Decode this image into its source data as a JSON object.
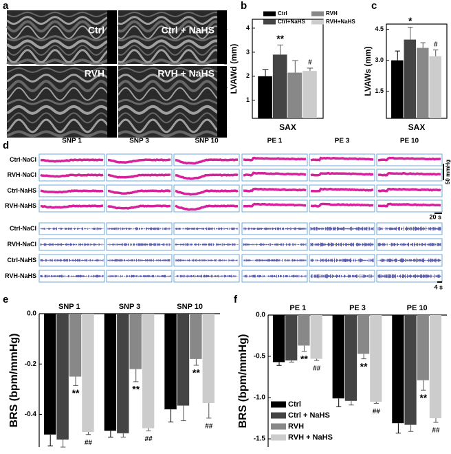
{
  "figure": {
    "panel_labels": [
      "a",
      "b",
      "c",
      "d",
      "e",
      "f"
    ],
    "echo_labels": [
      "Ctrl",
      "Ctrl + NaHS",
      "RVH",
      "RVH + NaHS"
    ],
    "trace_columns": [
      "SNP 1",
      "SNP 3",
      "SNP 10",
      "PE 1",
      "PE 3",
      "PE 10"
    ],
    "pressure_rows": [
      "Ctrl-NaCl",
      "RVH-NaCl",
      "Ctrl-NaHS",
      "RVH-NaHS"
    ],
    "nerve_rows": [
      "Ctrl-NaCl",
      "RVH-NaCl",
      "Ctrl-NaHS",
      "RVH-NaHS"
    ],
    "scale_labels": [
      "50 mmHg",
      "20 s",
      "4 s"
    ]
  },
  "chart_data": [
    {
      "type": "bar",
      "ylabel": "LVAWd (mm)",
      "categories": [
        "SAX"
      ],
      "category_side": "bottom",
      "frame": true,
      "legend": "top",
      "ylim": [
        0.25,
        4.37
      ],
      "yticks": [
        1,
        2,
        3,
        4
      ],
      "series": [
        {
          "name": "Ctrl",
          "color": "#000000",
          "values": [
            2.0
          ],
          "errors": [
            0.27
          ],
          "annotations": [
            null
          ]
        },
        {
          "name": "Ctrl+NaHS",
          "color": "#444444",
          "values": [
            2.9
          ],
          "errors": [
            0.4
          ],
          "annotations": [
            "**"
          ]
        },
        {
          "name": "RVH",
          "color": "#888888",
          "values": [
            2.15
          ],
          "errors": [
            0.5
          ],
          "annotations": [
            null
          ]
        },
        {
          "name": "RVH+NaHS",
          "color": "#cccccc",
          "values": [
            2.22
          ],
          "errors": [
            0.12
          ],
          "annotations": [
            "#"
          ]
        }
      ]
    },
    {
      "type": "bar",
      "ylabel": "LVAWs (mm)",
      "categories": [
        "SAX"
      ],
      "category_side": "bottom",
      "frame": true,
      "legend": false,
      "ylim": [
        0.2,
        4.75
      ],
      "yticks": [
        1.5,
        {
          "value": 3,
          "label": "3.0"
        },
        4.5
      ],
      "series": [
        {
          "color": "#000000",
          "values": [
            3.0
          ],
          "errors": [
            0.45
          ],
          "annotations": [
            null
          ]
        },
        {
          "color": "#444444",
          "values": [
            4.0
          ],
          "errors": [
            0.6
          ],
          "annotations": [
            "*"
          ]
        },
        {
          "color": "#888888",
          "values": [
            3.6
          ],
          "errors": [
            0.25
          ],
          "annotations": [
            null
          ]
        },
        {
          "color": "#cccccc",
          "values": [
            3.2
          ],
          "errors": [
            0.3
          ],
          "annotations": [
            "#"
          ]
        }
      ]
    },
    {
      "type": "bar",
      "ylabel": "BRS (bpm/mmHg)",
      "categories": [
        "SNP 1",
        "SNP 3",
        "SNP 10"
      ],
      "category_side": "top",
      "frame": false,
      "legend": false,
      "ylim": [
        -0.53,
        0
      ],
      "yticks": [
        {
          "value": 0,
          "label": "0.0"
        },
        -0.2,
        -0.4
      ],
      "series": [
        {
          "color": "#000000",
          "values": [
            -0.48,
            -0.465,
            -0.38
          ],
          "errors": [
            0.045,
            0.025,
            0.05
          ],
          "annotations": [
            null,
            null,
            null
          ]
        },
        {
          "color": "#444444",
          "values": [
            -0.5,
            -0.475,
            -0.365
          ],
          "errors": [
            0.03,
            0.015,
            0.06
          ],
          "annotations": [
            null,
            null,
            null
          ]
        },
        {
          "color": "#888888",
          "values": [
            -0.25,
            -0.22,
            -0.18
          ],
          "errors": [
            0.035,
            0.05,
            0.025
          ],
          "annotations": [
            "**",
            "**",
            "**"
          ]
        },
        {
          "color": "#cccccc",
          "values": [
            -0.47,
            -0.455,
            -0.355
          ],
          "errors": [
            0.01,
            0.01,
            0.06
          ],
          "annotations": [
            "##",
            "##",
            "##"
          ]
        }
      ]
    },
    {
      "type": "bar",
      "ylabel": "BRS (bpm/mmHg)",
      "categories": [
        "PE 1",
        "PE 3",
        "PE 10"
      ],
      "category_side": "top",
      "frame": false,
      "legend": "lower left",
      "ylim": [
        -1.6,
        0
      ],
      "yticks": [
        {
          "value": 0,
          "label": "0.0"
        },
        -0.5,
        {
          "value": -1,
          "label": "-1.0"
        },
        -1.5
      ],
      "series": [
        {
          "name": "Ctrl",
          "color": "#000000",
          "values": [
            -0.57,
            -1.01,
            -1.31
          ],
          "errors": [
            0.04,
            0.1,
            0.12
          ],
          "annotations": [
            null,
            null,
            null
          ]
        },
        {
          "name": "Ctrl + NaHS",
          "color": "#444444",
          "values": [
            -0.55,
            -1.04,
            -1.33
          ],
          "errors": [
            0.02,
            0.05,
            0.08
          ],
          "annotations": [
            null,
            null,
            null
          ]
        },
        {
          "name": "RVH",
          "color": "#888888",
          "values": [
            -0.37,
            -0.47,
            -0.79
          ],
          "errors": [
            0.07,
            0.06,
            0.12
          ],
          "annotations": [
            "**",
            "**",
            "**"
          ]
        },
        {
          "name": "RVH + NaHS",
          "color": "#cccccc",
          "values": [
            -0.53,
            -1.05,
            -1.25
          ],
          "errors": [
            0.02,
            0.02,
            0.05
          ],
          "annotations": [
            "##",
            "##",
            "##"
          ]
        }
      ]
    }
  ]
}
